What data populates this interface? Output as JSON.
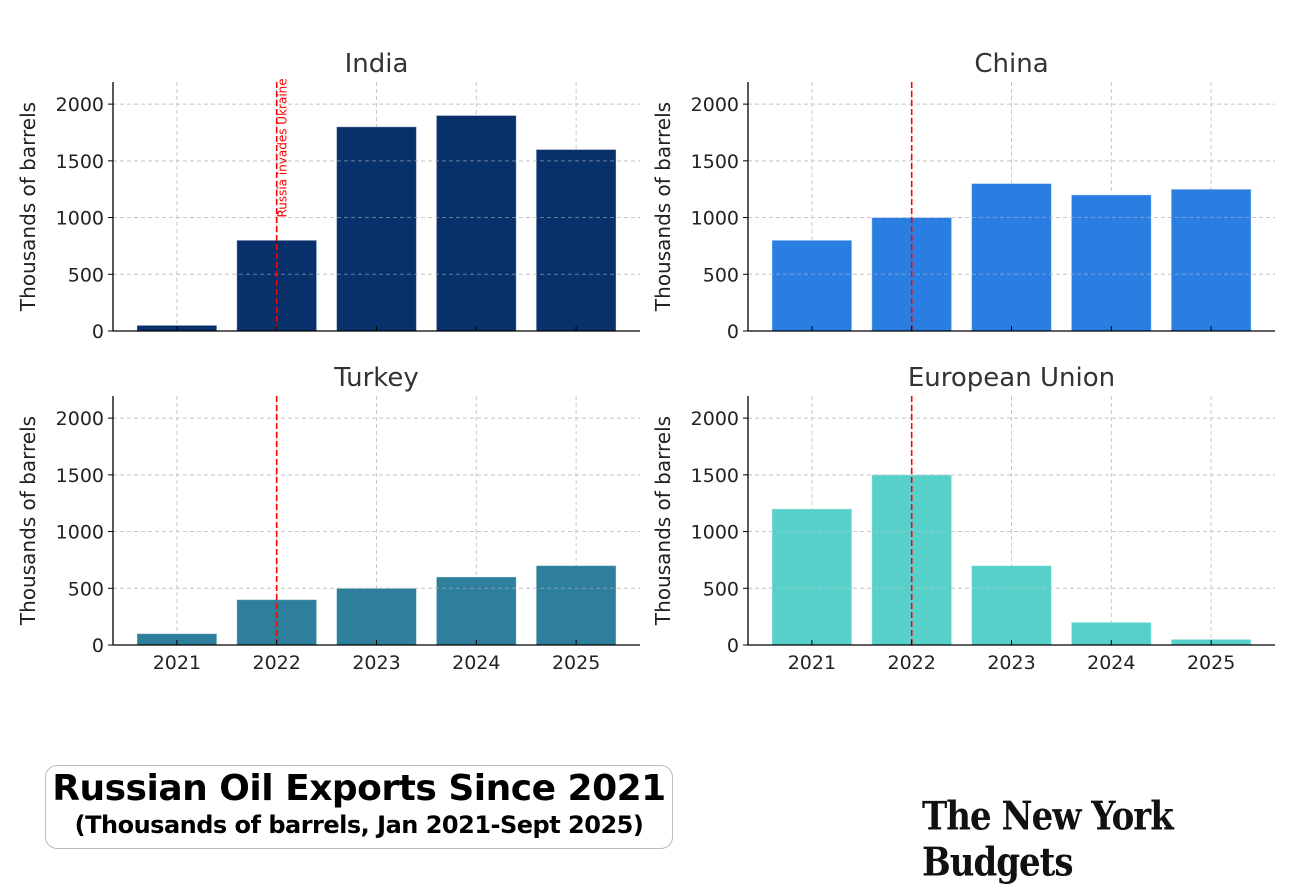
{
  "chart_data": [
    {
      "type": "bar",
      "title": "India",
      "categories": [
        "2021",
        "2022",
        "2023",
        "2024",
        "2025"
      ],
      "values": [
        50,
        800,
        1800,
        1900,
        1600
      ],
      "ylabel": "Thousands of barrels",
      "xlabel": "",
      "ylim": [
        0,
        2195
      ],
      "yticks": [
        0,
        500,
        1000,
        1500,
        2000
      ],
      "color": "#08306b",
      "grid": true,
      "show_xticklabels": false,
      "vline": {
        "x": "2022",
        "label": "Russia invades Ukraine",
        "color": "#ff0000"
      }
    },
    {
      "type": "bar",
      "title": "China",
      "categories": [
        "2021",
        "2022",
        "2023",
        "2024",
        "2025"
      ],
      "values": [
        800,
        1000,
        1300,
        1200,
        1250
      ],
      "ylabel": "Thousands of barrels",
      "xlabel": "",
      "ylim": [
        0,
        2195
      ],
      "yticks": [
        0,
        500,
        1000,
        1500,
        2000
      ],
      "color": "#2a7de1",
      "grid": true,
      "show_xticklabels": false,
      "vline": {
        "x": "2022",
        "label": "",
        "color": "#ff0000"
      }
    },
    {
      "type": "bar",
      "title": "Turkey",
      "categories": [
        "2021",
        "2022",
        "2023",
        "2024",
        "2025"
      ],
      "values": [
        100,
        400,
        500,
        600,
        700
      ],
      "ylabel": "Thousands of barrels",
      "xlabel": "",
      "ylim": [
        0,
        2195
      ],
      "yticks": [
        0,
        500,
        1000,
        1500,
        2000
      ],
      "color": "#2e7f9b",
      "grid": true,
      "show_xticklabels": true,
      "vline": {
        "x": "2022",
        "label": "",
        "color": "#ff0000"
      }
    },
    {
      "type": "bar",
      "title": "European Union",
      "categories": [
        "2021",
        "2022",
        "2023",
        "2024",
        "2025"
      ],
      "values": [
        1200,
        1500,
        700,
        200,
        50
      ],
      "ylabel": "Thousands of barrels",
      "xlabel": "",
      "ylim": [
        0,
        2195
      ],
      "yticks": [
        0,
        500,
        1000,
        1500,
        2000
      ],
      "color": "#57d0c9",
      "grid": true,
      "show_xticklabels": true,
      "vline": {
        "x": "2022",
        "label": "",
        "color": "#ff0000"
      }
    }
  ],
  "caption": {
    "title": "Russian Oil Exports Since 2021",
    "subtitle": "(Thousands of barrels, Jan 2021-Sept 2025)"
  },
  "logo": {
    "text": "The New York Budgets"
  }
}
